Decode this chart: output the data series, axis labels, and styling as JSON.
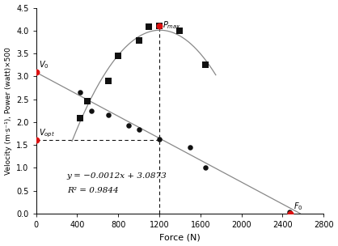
{
  "title": "",
  "xlabel": "Force (N)",
  "ylabel": "Velocity (m·s⁻¹), Power (watt)×500",
  "xlim": [
    0,
    2800
  ],
  "ylim": [
    0,
    4.5
  ],
  "xticks": [
    0,
    400,
    800,
    1200,
    1600,
    2000,
    2400,
    2800
  ],
  "yticks": [
    0.0,
    0.5,
    1.0,
    1.5,
    2.0,
    2.5,
    3.0,
    3.5,
    4.0,
    4.5
  ],
  "velocity_points": [
    [
      430,
      2.65
    ],
    [
      540,
      2.25
    ],
    [
      700,
      2.15
    ],
    [
      900,
      1.93
    ],
    [
      1000,
      1.83
    ],
    [
      1200,
      1.63
    ],
    [
      1500,
      1.44
    ],
    [
      1650,
      1.01
    ],
    [
      2470,
      0.03
    ]
  ],
  "power_points": [
    [
      430,
      2.08
    ],
    [
      500,
      2.46
    ],
    [
      700,
      2.9
    ],
    [
      800,
      3.44
    ],
    [
      1000,
      3.78
    ],
    [
      1100,
      4.08
    ],
    [
      1200,
      4.1
    ],
    [
      1400,
      4.0
    ],
    [
      1650,
      3.25
    ]
  ],
  "v0_y": 3.087,
  "vopt_y": 1.6,
  "pmax_x": 1200,
  "pmax_y": 4.1,
  "f0_x": 2473,
  "equation_text": "y = −0.0012x + 3.0873",
  "r2_text": "R² = 0.9844",
  "line_color": "#888888",
  "dot_color": "#111111",
  "square_color": "#111111",
  "red_color": "#dd1111",
  "dashed_color": "#111111"
}
